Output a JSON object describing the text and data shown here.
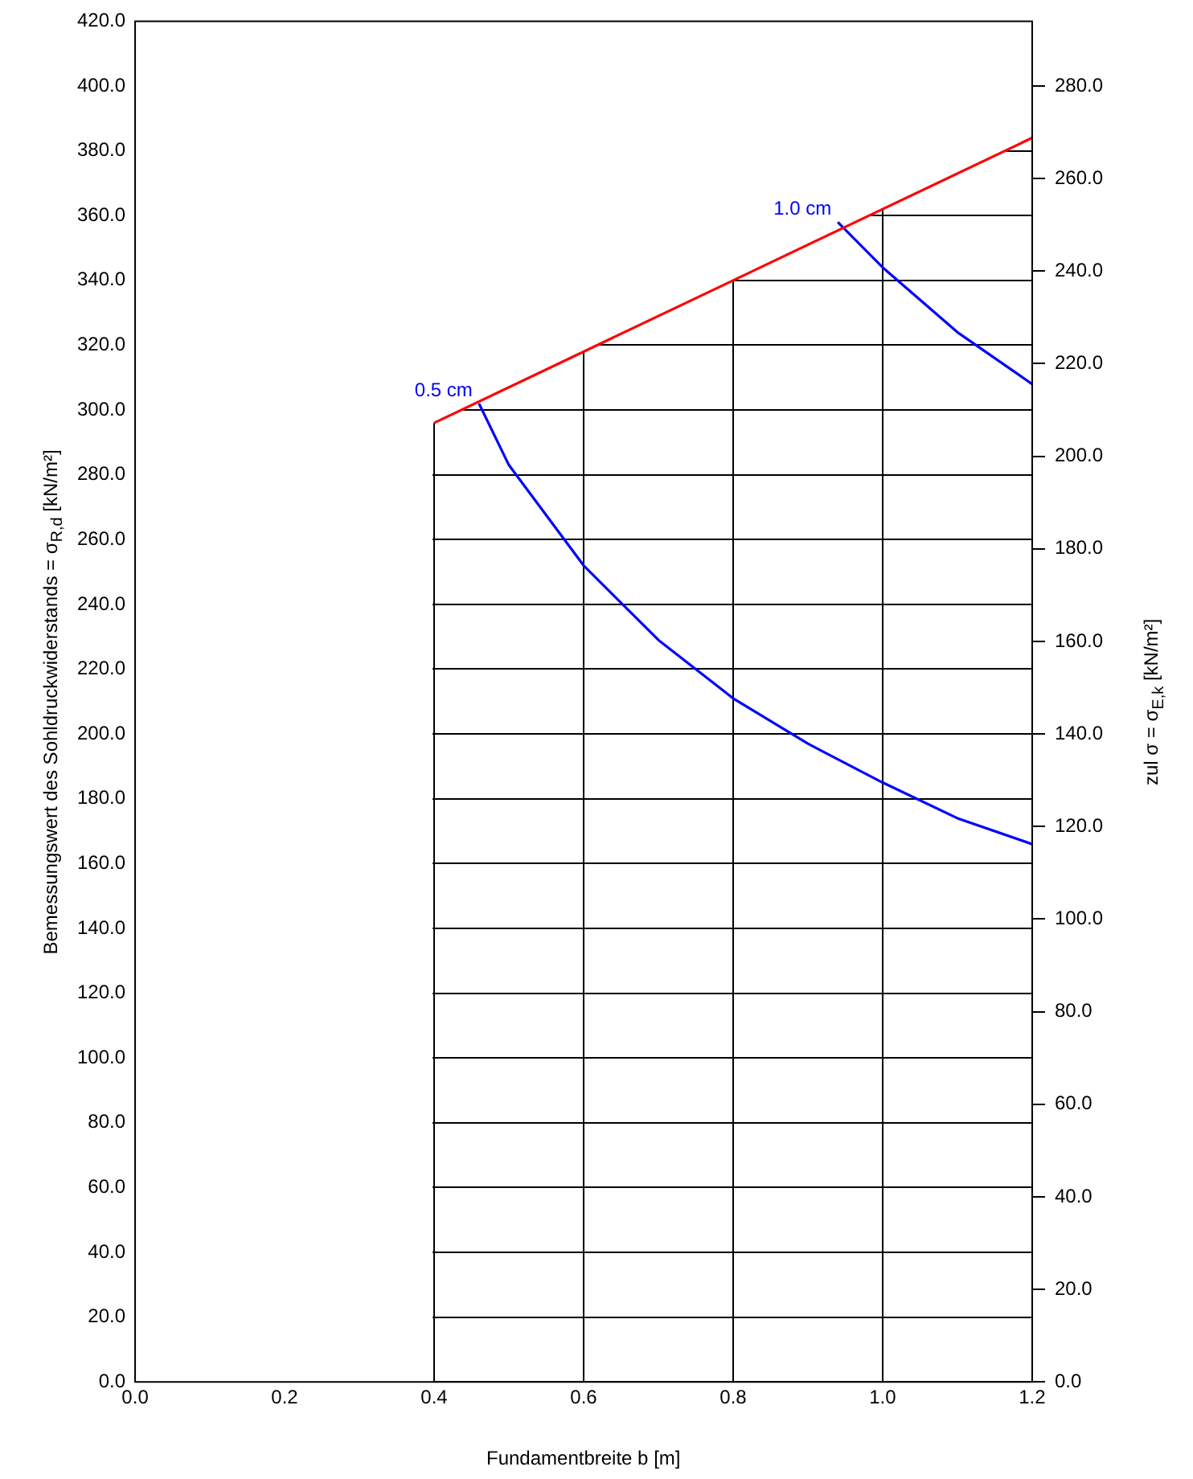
{
  "chart_data": {
    "type": "line",
    "xlabel": "Fundamentbreite b [m]",
    "ylabel": "Bemessungswert des Sohldruckwiderstands = σ$_{R,d}$ [kN/m²]",
    "y2label": "zul σ = σ$_{E,k}$ [kN/m²]",
    "xlim": [
      0,
      1.2
    ],
    "xticks": [
      {
        "value": 0,
        "label": "0.0"
      },
      {
        "value": 0.2,
        "label": "0.2"
      },
      {
        "value": 0.4,
        "label": "0.4"
      },
      {
        "value": 0.6,
        "label": "0.6"
      },
      {
        "value": 0.8,
        "label": "0.8"
      },
      {
        "value": 1.0,
        "label": "1.0"
      },
      {
        "value": 1.2,
        "label": "1.2"
      }
    ],
    "ylim": [
      0,
      420
    ],
    "yticks": [
      {
        "value": 0,
        "label": "0.0"
      },
      {
        "value": 20,
        "label": "20.0"
      },
      {
        "value": 40,
        "label": "40.0"
      },
      {
        "value": 60,
        "label": "60.0"
      },
      {
        "value": 80,
        "label": "80.0"
      },
      {
        "value": 100,
        "label": "100.0"
      },
      {
        "value": 120,
        "label": "120.0"
      },
      {
        "value": 140,
        "label": "140.0"
      },
      {
        "value": 160,
        "label": "160.0"
      },
      {
        "value": 180,
        "label": "180.0"
      },
      {
        "value": 200,
        "label": "200.0"
      },
      {
        "value": 220,
        "label": "220.0"
      },
      {
        "value": 240,
        "label": "240.0"
      },
      {
        "value": 260,
        "label": "260.0"
      },
      {
        "value": 280,
        "label": "280.0"
      },
      {
        "value": 300,
        "label": "300.0"
      },
      {
        "value": 320,
        "label": "320.0"
      },
      {
        "value": 340,
        "label": "340.0"
      },
      {
        "value": 360,
        "label": "360.0"
      },
      {
        "value": 380,
        "label": "380.0"
      },
      {
        "value": 400,
        "label": "400.0"
      },
      {
        "value": 420,
        "label": "420.0"
      }
    ],
    "y2lim": [
      0,
      294
    ],
    "y2ticks": [
      {
        "value": 0,
        "label": "0.0"
      },
      {
        "value": 20,
        "label": "20.0"
      },
      {
        "value": 40,
        "label": "40.0"
      },
      {
        "value": 60,
        "label": "60.0"
      },
      {
        "value": 80,
        "label": "80.0"
      },
      {
        "value": 100,
        "label": "100.0"
      },
      {
        "value": 120,
        "label": "120.0"
      },
      {
        "value": 140,
        "label": "140.0"
      },
      {
        "value": 160,
        "label": "160.0"
      },
      {
        "value": 180,
        "label": "180.0"
      },
      {
        "value": 200,
        "label": "200.0"
      },
      {
        "value": 220,
        "label": "220.0"
      },
      {
        "value": 240,
        "label": "240.0"
      },
      {
        "value": 260,
        "label": "260.0"
      },
      {
        "value": 280,
        "label": "280.0"
      }
    ],
    "grid": true,
    "legend": false,
    "marker": "none",
    "line_style": "solid",
    "series": [
      {
        "color": "#ff0000",
        "x": [
          0.4,
          0.6,
          0.8,
          1.0,
          1.2
        ],
        "values": [
          296,
          318,
          340,
          362,
          384
        ]
      },
      {
        "name": "0.5 cm",
        "color": "#0000ff",
        "x": [
          0.46,
          0.5,
          0.6,
          0.7,
          0.8,
          0.9,
          1.0,
          1.1,
          1.2
        ],
        "values": [
          302,
          283,
          252,
          229,
          211,
          197,
          185,
          174,
          166
        ]
      },
      {
        "name": "1.0 cm",
        "color": "#0000ff",
        "x": [
          0.94,
          1.0,
          1.1,
          1.2
        ],
        "values": [
          358,
          344,
          324,
          308
        ]
      }
    ]
  }
}
